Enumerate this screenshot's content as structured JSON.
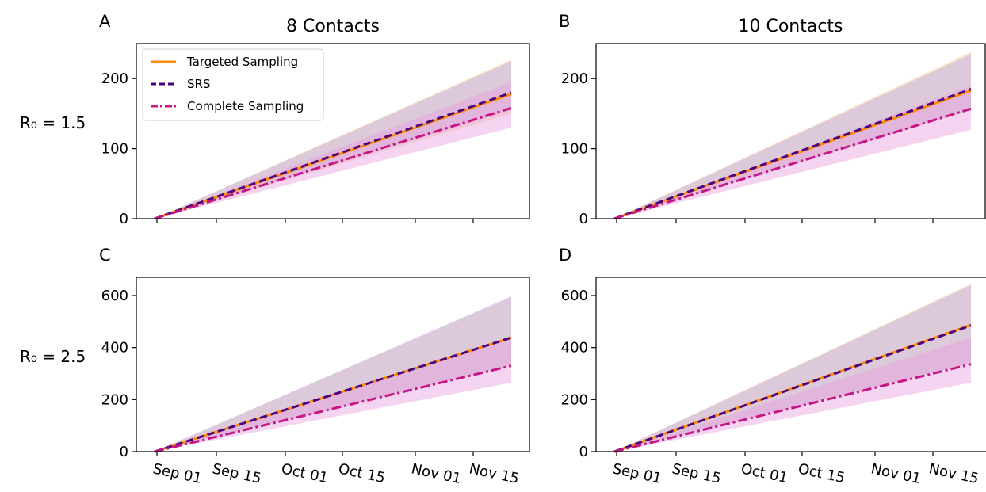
{
  "colors": {
    "targeted": "#ff8c00",
    "srs": "#4b0082",
    "complete": "#c71585",
    "targeted_band": "#f5c78a",
    "srs_band": "#b8a7ea",
    "complete_band": "#e8a0e0"
  },
  "row_labels": [
    "R₀ = 1.5",
    "R₀ = 2.5"
  ],
  "chart_data": [
    {
      "type": "line",
      "panel": "A",
      "title": "8 Contacts",
      "x_ticks": [
        "Sep 01",
        "Sep 15",
        "Oct 01",
        "Oct 15",
        "Nov 01",
        "Nov 15"
      ],
      "x": [
        "2020-08-31",
        "2020-11-23"
      ],
      "ylim": [
        0,
        250
      ],
      "yticks": [
        0,
        100,
        200
      ],
      "series": [
        {
          "name": "Targeted Sampling",
          "key": "targeted",
          "style": "solid",
          "values": [
            0,
            178
          ],
          "band": [
            [
              0,
              0
            ],
            [
              150,
              227
            ]
          ]
        },
        {
          "name": "SRS",
          "key": "srs",
          "style": "dashed",
          "values": [
            0,
            180
          ],
          "band": [
            [
              0,
              0
            ],
            [
              155,
              225
            ]
          ]
        },
        {
          "name": "Complete Sampling",
          "key": "complete",
          "style": "dashdot",
          "values": [
            0,
            158
          ],
          "band": [
            [
              0,
              0
            ],
            [
              130,
              195
            ]
          ]
        }
      ],
      "legend": {
        "location": "upper left",
        "entries": [
          "Targeted Sampling",
          "SRS",
          "Complete Sampling"
        ]
      }
    },
    {
      "type": "line",
      "panel": "B",
      "title": "10 Contacts",
      "x_ticks": [
        "Sep 01",
        "Sep 15",
        "Oct 01",
        "Oct 15",
        "Nov 01",
        "Nov 15"
      ],
      "x": [
        "2020-08-31",
        "2020-11-23"
      ],
      "ylim": [
        0,
        250
      ],
      "yticks": [
        0,
        100,
        200
      ],
      "series": [
        {
          "name": "Targeted Sampling",
          "key": "targeted",
          "style": "solid",
          "values": [
            0,
            183
          ],
          "band": [
            [
              0,
              0
            ],
            [
              155,
              238
            ]
          ]
        },
        {
          "name": "SRS",
          "key": "srs",
          "style": "dashed",
          "values": [
            0,
            185
          ],
          "band": [
            [
              0,
              0
            ],
            [
              155,
              235
            ]
          ]
        },
        {
          "name": "Complete Sampling",
          "key": "complete",
          "style": "dashdot",
          "values": [
            0,
            157
          ],
          "band": [
            [
              0,
              0
            ],
            [
              127,
              190
            ]
          ]
        }
      ]
    },
    {
      "type": "line",
      "panel": "C",
      "title": "",
      "x_ticks": [
        "Sep 01",
        "Sep 15",
        "Oct 01",
        "Oct 15",
        "Nov 01",
        "Nov 15"
      ],
      "x": [
        "2020-08-31",
        "2020-11-23"
      ],
      "ylim": [
        0,
        670
      ],
      "yticks": [
        0,
        200,
        400,
        600
      ],
      "series": [
        {
          "name": "Targeted Sampling",
          "key": "targeted",
          "style": "solid",
          "values": [
            0,
            438
          ],
          "band": [
            [
              0,
              0
            ],
            [
              330,
              593
            ]
          ]
        },
        {
          "name": "SRS",
          "key": "srs",
          "style": "dashed",
          "values": [
            0,
            438
          ],
          "band": [
            [
              0,
              0
            ],
            [
              330,
              597
            ]
          ]
        },
        {
          "name": "Complete Sampling",
          "key": "complete",
          "style": "dashdot",
          "values": [
            0,
            330
          ],
          "band": [
            [
              0,
              0
            ],
            [
              265,
              440
            ]
          ]
        }
      ]
    },
    {
      "type": "line",
      "panel": "D",
      "title": "",
      "x_ticks": [
        "Sep 01",
        "Sep 15",
        "Oct 01",
        "Oct 15",
        "Nov 01",
        "Nov 15"
      ],
      "x": [
        "2020-08-31",
        "2020-11-23"
      ],
      "ylim": [
        0,
        670
      ],
      "yticks": [
        0,
        200,
        400,
        600
      ],
      "series": [
        {
          "name": "Targeted Sampling",
          "key": "targeted",
          "style": "solid",
          "values": [
            0,
            487
          ],
          "band": [
            [
              0,
              0
            ],
            [
              340,
              645
            ]
          ]
        },
        {
          "name": "SRS",
          "key": "srs",
          "style": "dashed",
          "values": [
            0,
            485
          ],
          "band": [
            [
              0,
              0
            ],
            [
              340,
              640
            ]
          ]
        },
        {
          "name": "Complete Sampling",
          "key": "complete",
          "style": "dashdot",
          "values": [
            0,
            336
          ],
          "band": [
            [
              0,
              0
            ],
            [
              265,
              438
            ]
          ]
        }
      ]
    }
  ]
}
